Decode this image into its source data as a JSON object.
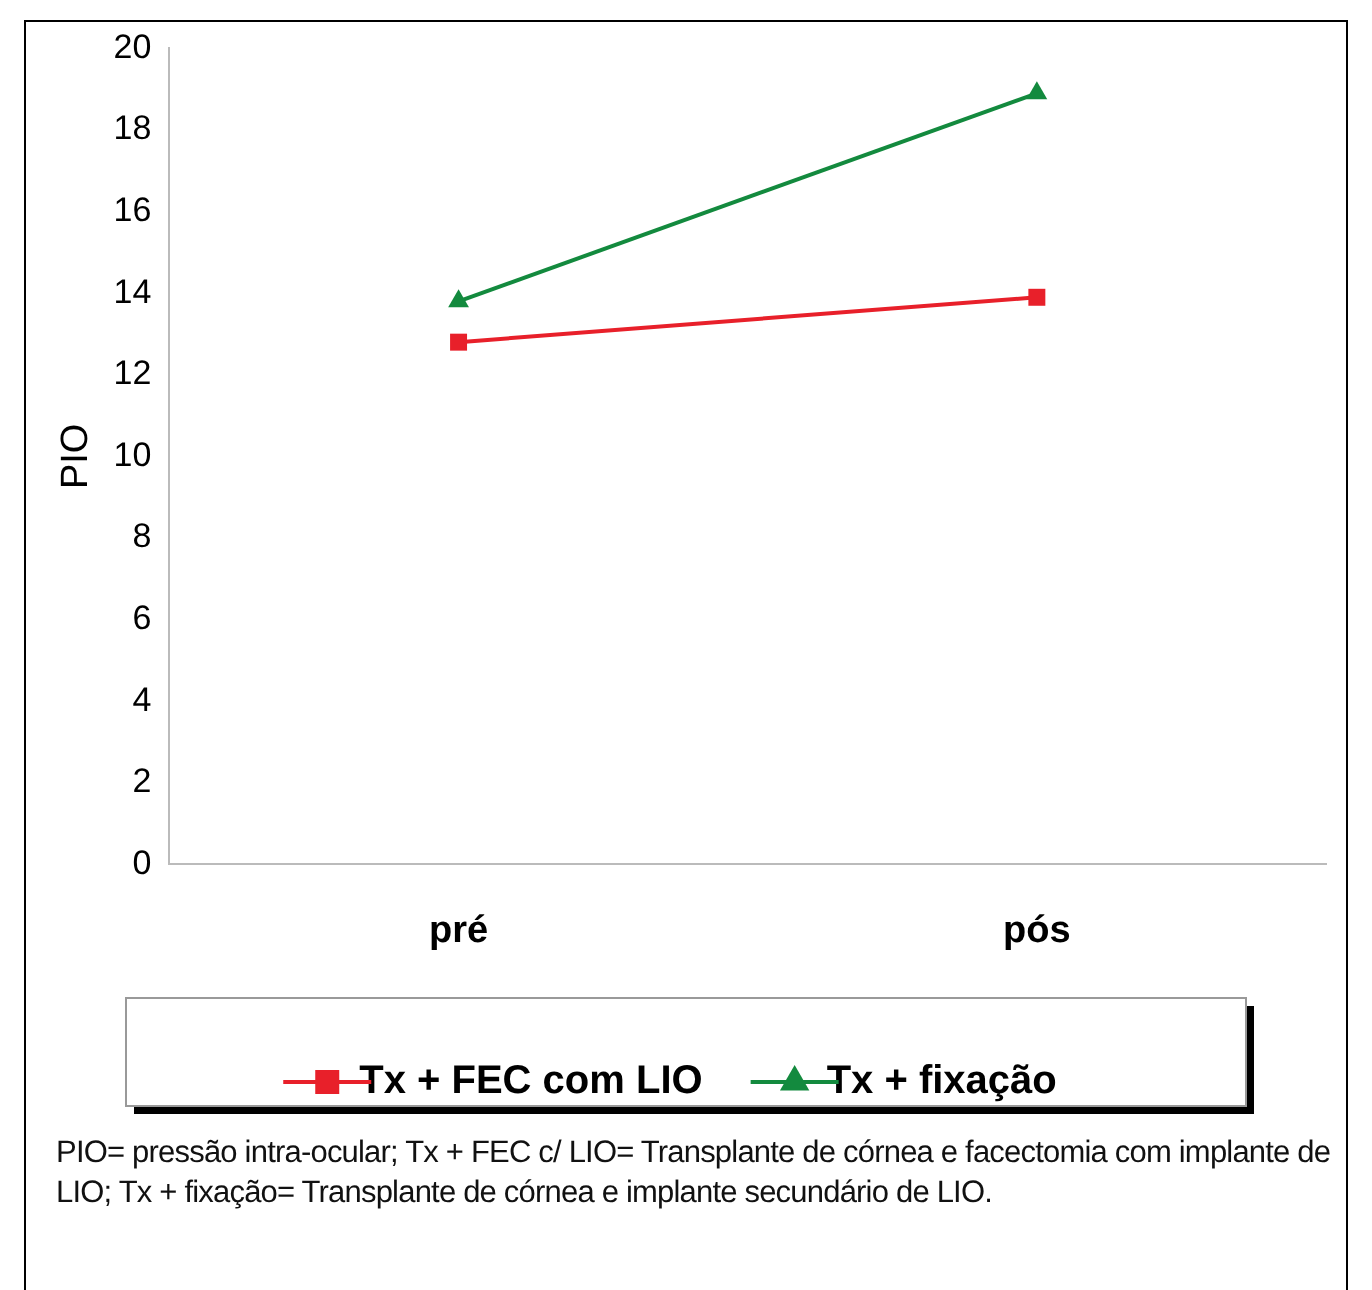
{
  "chart_data": {
    "type": "line",
    "ylabel": "PIO",
    "categories": [
      "pré",
      "pós"
    ],
    "series": [
      {
        "name": "Tx + FEC com LIO",
        "color": "#e8202a",
        "values": [
          12.8,
          13.9
        ],
        "marker": "square"
      },
      {
        "name": "Tx + fixação",
        "color": "#138a3e",
        "values": [
          13.8,
          18.9
        ],
        "marker": "triangle"
      }
    ],
    "ylim": [
      0,
      20
    ],
    "yticks": [
      0,
      2,
      4,
      6,
      8,
      10,
      12,
      14,
      16,
      18,
      20
    ],
    "grid": false,
    "legend": "bottom",
    "annotations": [
      "PIO= pressão intra-ocular; Tx + FEC c/ LIO= Transplante de córnea e facectomia com implante de LIO; Tx + fixação= Transplante de córnea e implante secundário de  LIO."
    ]
  }
}
